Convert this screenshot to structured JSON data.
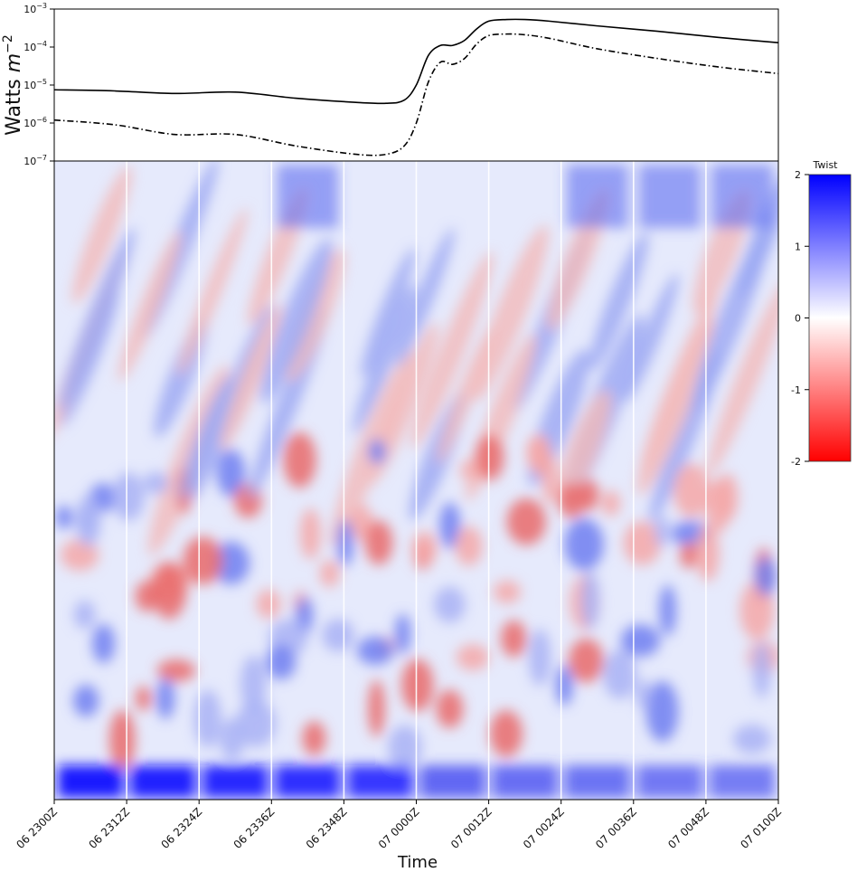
{
  "chart_data": [
    {
      "type": "line",
      "ylabel": "Watts m⁻²",
      "ylabel_text": "Watts",
      "ylabel_unit": "m",
      "ylabel_exp": "−2",
      "yscale": "log",
      "ylim": [
        1e-07,
        0.001
      ],
      "y_ticks": [
        {
          "value": 0.001,
          "base": "10",
          "exp": "−3"
        },
        {
          "value": 0.0001,
          "base": "10",
          "exp": "−4"
        },
        {
          "value": 1e-05,
          "base": "10",
          "exp": "−5"
        },
        {
          "value": 1e-06,
          "base": "10",
          "exp": "−6"
        },
        {
          "value": 1e-07,
          "base": "10",
          "exp": "−7"
        }
      ],
      "x_minutes_from_06_2300Z": [
        0,
        10,
        20,
        30,
        40,
        50,
        55,
        58,
        60,
        62,
        64,
        66,
        68,
        70,
        72,
        75,
        78,
        82,
        90,
        100,
        110,
        120
      ],
      "series": [
        {
          "style": "solid",
          "color": "#000000",
          "values": [
            7.5e-06,
            7e-06,
            6e-06,
            6.5e-06,
            4.5e-06,
            3.5e-06,
            3.3e-06,
            4e-06,
            1e-05,
            6e-05,
            0.00011,
            0.00011,
            0.00015,
            0.0003,
            0.00048,
            0.00053,
            0.00053,
            0.00048,
            0.00036,
            0.00026,
            0.00018,
            0.00013
          ]
        },
        {
          "style": "dashdot",
          "color": "#000000",
          "values": [
            1.2e-06,
            9e-07,
            5e-07,
            5e-07,
            2.5e-07,
            1.5e-07,
            1.5e-07,
            2.5e-07,
            1e-06,
            1.2e-05,
            4e-05,
            3.5e-05,
            5e-05,
            0.00012,
            0.0002,
            0.00022,
            0.00021,
            0.00017,
            9e-05,
            5e-05,
            3e-05,
            2e-05
          ]
        }
      ]
    },
    {
      "type": "heatmap",
      "xlabel": "Time",
      "colormap": "bwr (blue = positive, red = negative)",
      "categories": [
        "06 2300Z",
        "06 2312Z",
        "06 2324Z",
        "06 2336Z",
        "06 2348Z",
        "07 0000Z",
        "07 0012Z",
        "07 0024Z",
        "07 0036Z",
        "07 0048Z",
        "07 0100Z"
      ],
      "colorbar": {
        "title": "Twist",
        "range": [
          -2,
          2
        ],
        "ticks": [
          2,
          1,
          0,
          -1,
          -2
        ],
        "tick_labels": [
          "2",
          "1",
          "0",
          "-1",
          "-2"
        ],
        "color_max": "#0000ff",
        "color_mid": "#ffffff",
        "color_min": "#ff0000"
      }
    }
  ]
}
